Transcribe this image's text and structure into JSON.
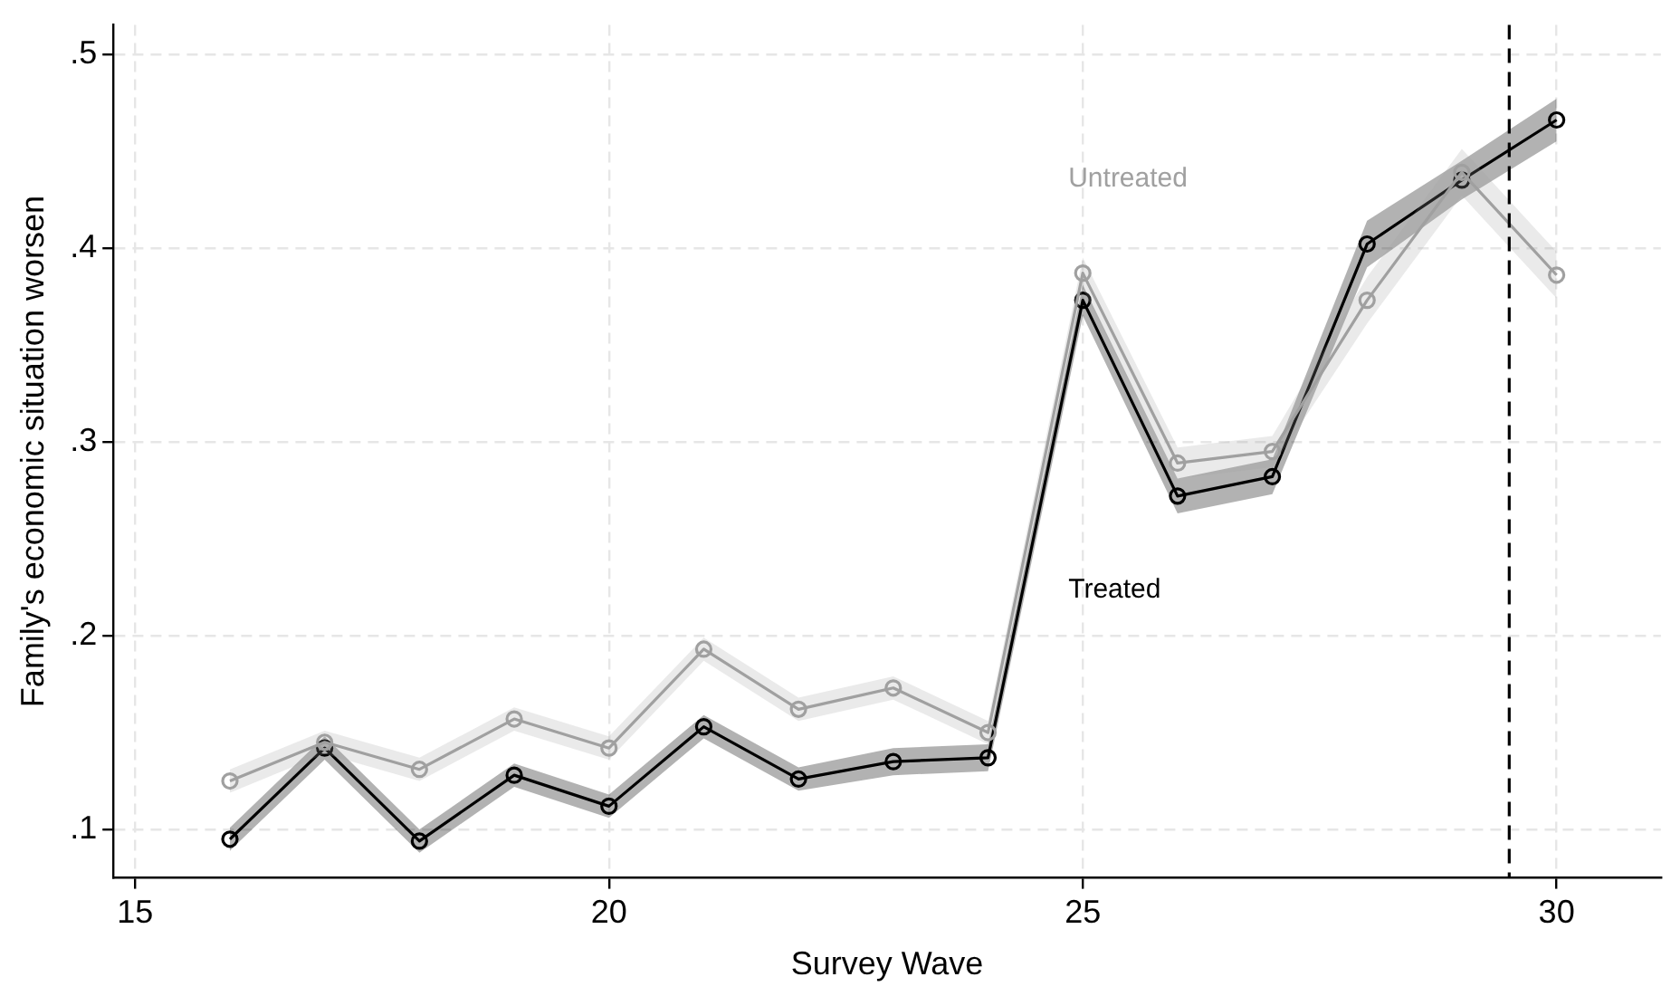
{
  "chart_data": {
    "type": "line",
    "xlabel": "Survey Wave",
    "ylabel": "Family's economic situation worsen",
    "x": [
      16,
      17,
      18,
      19,
      20,
      21,
      22,
      23,
      24,
      25,
      26,
      27,
      28,
      29,
      30
    ],
    "series": [
      {
        "name": "Untreated",
        "color": "#a0a0a0",
        "values": [
          0.125,
          0.145,
          0.131,
          0.157,
          0.142,
          0.193,
          0.162,
          0.173,
          0.15,
          0.387,
          0.289,
          0.295,
          0.373,
          0.439,
          0.386
        ],
        "lower": [
          0.119,
          0.139,
          0.125,
          0.151,
          0.136,
          0.187,
          0.156,
          0.167,
          0.144,
          0.379,
          0.281,
          0.287,
          0.361,
          0.427,
          0.374
        ],
        "upper": [
          0.131,
          0.151,
          0.137,
          0.163,
          0.148,
          0.199,
          0.168,
          0.179,
          0.156,
          0.395,
          0.297,
          0.303,
          0.385,
          0.451,
          0.398
        ]
      },
      {
        "name": "Treated",
        "color": "#000000",
        "values": [
          0.095,
          0.142,
          0.094,
          0.128,
          0.112,
          0.153,
          0.126,
          0.135,
          0.137,
          0.373,
          0.272,
          0.282,
          0.402,
          0.435,
          0.466
        ],
        "lower": [
          0.089,
          0.136,
          0.088,
          0.122,
          0.106,
          0.147,
          0.12,
          0.128,
          0.13,
          0.365,
          0.263,
          0.273,
          0.39,
          0.425,
          0.455
        ],
        "upper": [
          0.101,
          0.148,
          0.1,
          0.134,
          0.118,
          0.159,
          0.132,
          0.142,
          0.144,
          0.381,
          0.281,
          0.291,
          0.414,
          0.445,
          0.477
        ]
      }
    ],
    "xlim": [
      14.77,
      31.1
    ],
    "xticks": [
      15,
      20,
      25,
      30
    ],
    "ylim": [
      0.075,
      0.515
    ],
    "yticks": [
      {
        "value": 0.1,
        "label": ".1"
      },
      {
        "value": 0.2,
        "label": ".2"
      },
      {
        "value": 0.3,
        "label": ".3"
      },
      {
        "value": 0.4,
        "label": ".4"
      },
      {
        "value": 0.5,
        "label": ".5"
      }
    ],
    "ref_lines": [
      {
        "axis": "x",
        "value": 29.5,
        "color": "#000000",
        "line_style": "dashed"
      }
    ],
    "grid": true,
    "legend": false,
    "marker": "circle",
    "line_style": "solid"
  }
}
